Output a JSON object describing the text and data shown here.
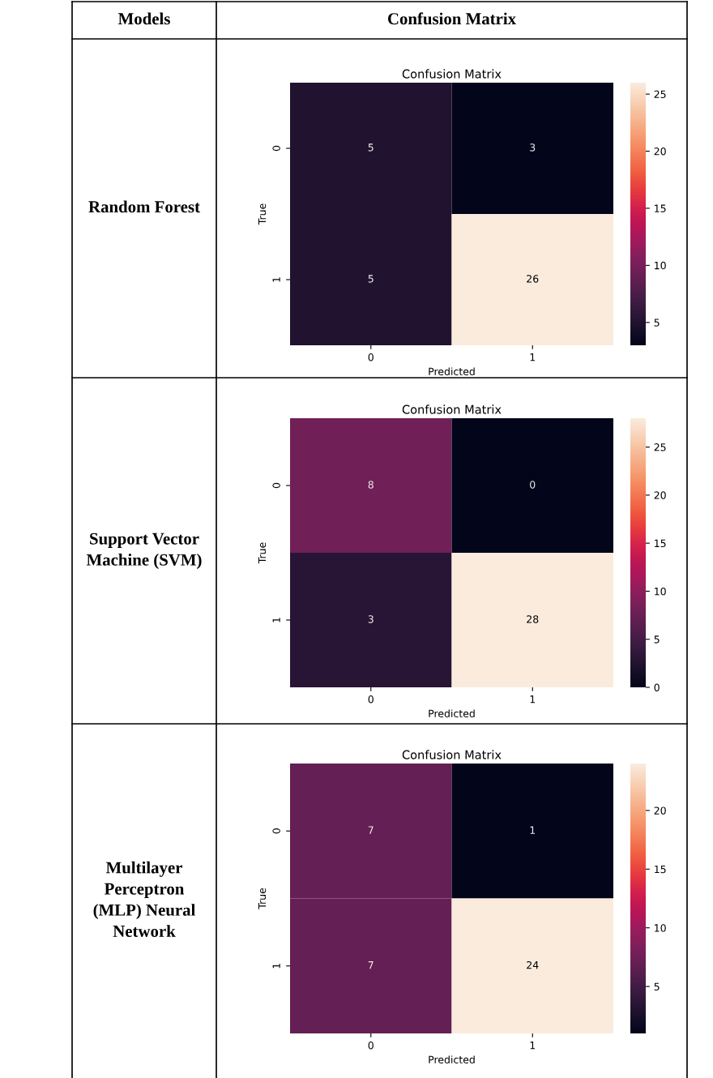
{
  "chart_data": [
    {
      "type": "heatmap",
      "title": "Confusion Matrix",
      "subtitle": "Random Forest",
      "annotations": [
        "Models",
        "Confusion Matrix"
      ],
      "xlabel": "Predicted",
      "ylabel": "True",
      "categories": [
        "0",
        "1"
      ],
      "y_categories": [
        "0",
        "1"
      ],
      "cells": [
        [
          5,
          3
        ],
        [
          5,
          26
        ]
      ],
      "data_labels": true,
      "clim": [
        3,
        26
      ],
      "cticks": [
        5,
        10,
        15,
        20,
        25
      ]
    },
    {
      "type": "heatmap",
      "title": "Confusion Matrix",
      "subtitle": "Support Vector\nMachine (SVM)",
      "xlabel": "Predicted",
      "ylabel": "True",
      "categories": [
        "0",
        "1"
      ],
      "y_categories": [
        "0",
        "1"
      ],
      "cells": [
        [
          8,
          0
        ],
        [
          3,
          28
        ]
      ],
      "data_labels": true,
      "clim": [
        0,
        28
      ],
      "cticks": [
        0,
        5,
        10,
        15,
        20,
        25
      ]
    },
    {
      "type": "heatmap",
      "title": "Confusion Matrix",
      "subtitle": "Multilayer\nPerceptron\n(MLP) Neural\nNetwork",
      "xlabel": "Predicted",
      "ylabel": "True",
      "categories": [
        "0",
        "1"
      ],
      "y_categories": [
        "0",
        "1"
      ],
      "cells": [
        [
          7,
          1
        ],
        [
          7,
          24
        ]
      ],
      "data_labels": true,
      "clim": [
        1,
        24
      ],
      "cticks": [
        5,
        10,
        15,
        20
      ]
    }
  ]
}
